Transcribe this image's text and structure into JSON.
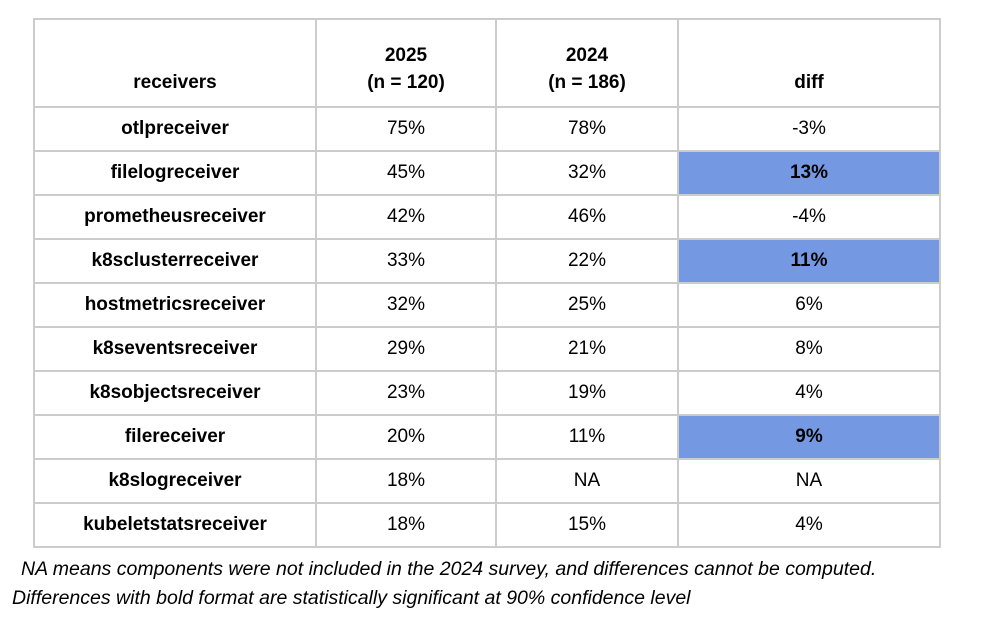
{
  "chart_data": {
    "type": "table",
    "header": {
      "receivers": "receivers",
      "y2025_line1": "2025",
      "y2025_line2": "(n = 120)",
      "y2024_line1": "2024",
      "y2024_line2": "(n = 186)",
      "diff": "diff"
    },
    "rows": [
      {
        "receiver": "otlpreceiver",
        "y2025": "75%",
        "y2024": "78%",
        "diff": "-3%",
        "significant": false
      },
      {
        "receiver": "filelogreceiver",
        "y2025": "45%",
        "y2024": "32%",
        "diff": "13%",
        "significant": true
      },
      {
        "receiver": "prometheusreceiver",
        "y2025": "42%",
        "y2024": "46%",
        "diff": "-4%",
        "significant": false
      },
      {
        "receiver": "k8sclusterreceiver",
        "y2025": "33%",
        "y2024": "22%",
        "diff": "11%",
        "significant": true
      },
      {
        "receiver": "hostmetricsreceiver",
        "y2025": "32%",
        "y2024": "25%",
        "diff": "6%",
        "significant": false
      },
      {
        "receiver": "k8seventsreceiver",
        "y2025": "29%",
        "y2024": "21%",
        "diff": "8%",
        "significant": false
      },
      {
        "receiver": "k8sobjectsreceiver",
        "y2025": "23%",
        "y2024": "19%",
        "diff": "4%",
        "significant": false
      },
      {
        "receiver": "filereceiver",
        "y2025": "20%",
        "y2024": "11%",
        "diff": "9%",
        "significant": true
      },
      {
        "receiver": "k8slogreceiver",
        "y2025": "18%",
        "y2024": "NA",
        "diff": "NA",
        "significant": false
      },
      {
        "receiver": "kubeletstatsreceiver",
        "y2025": "18%",
        "y2024": "15%",
        "diff": "4%",
        "significant": false
      }
    ],
    "notes": {
      "line1": "NA means components were not included in the 2024 survey, and differences cannot be computed.",
      "line2": "Differences with bold format are statistically significant at 90% confidence level"
    },
    "colors": {
      "highlight": "#7499E2",
      "border": "#CCCCCC",
      "text": "#000000"
    }
  }
}
